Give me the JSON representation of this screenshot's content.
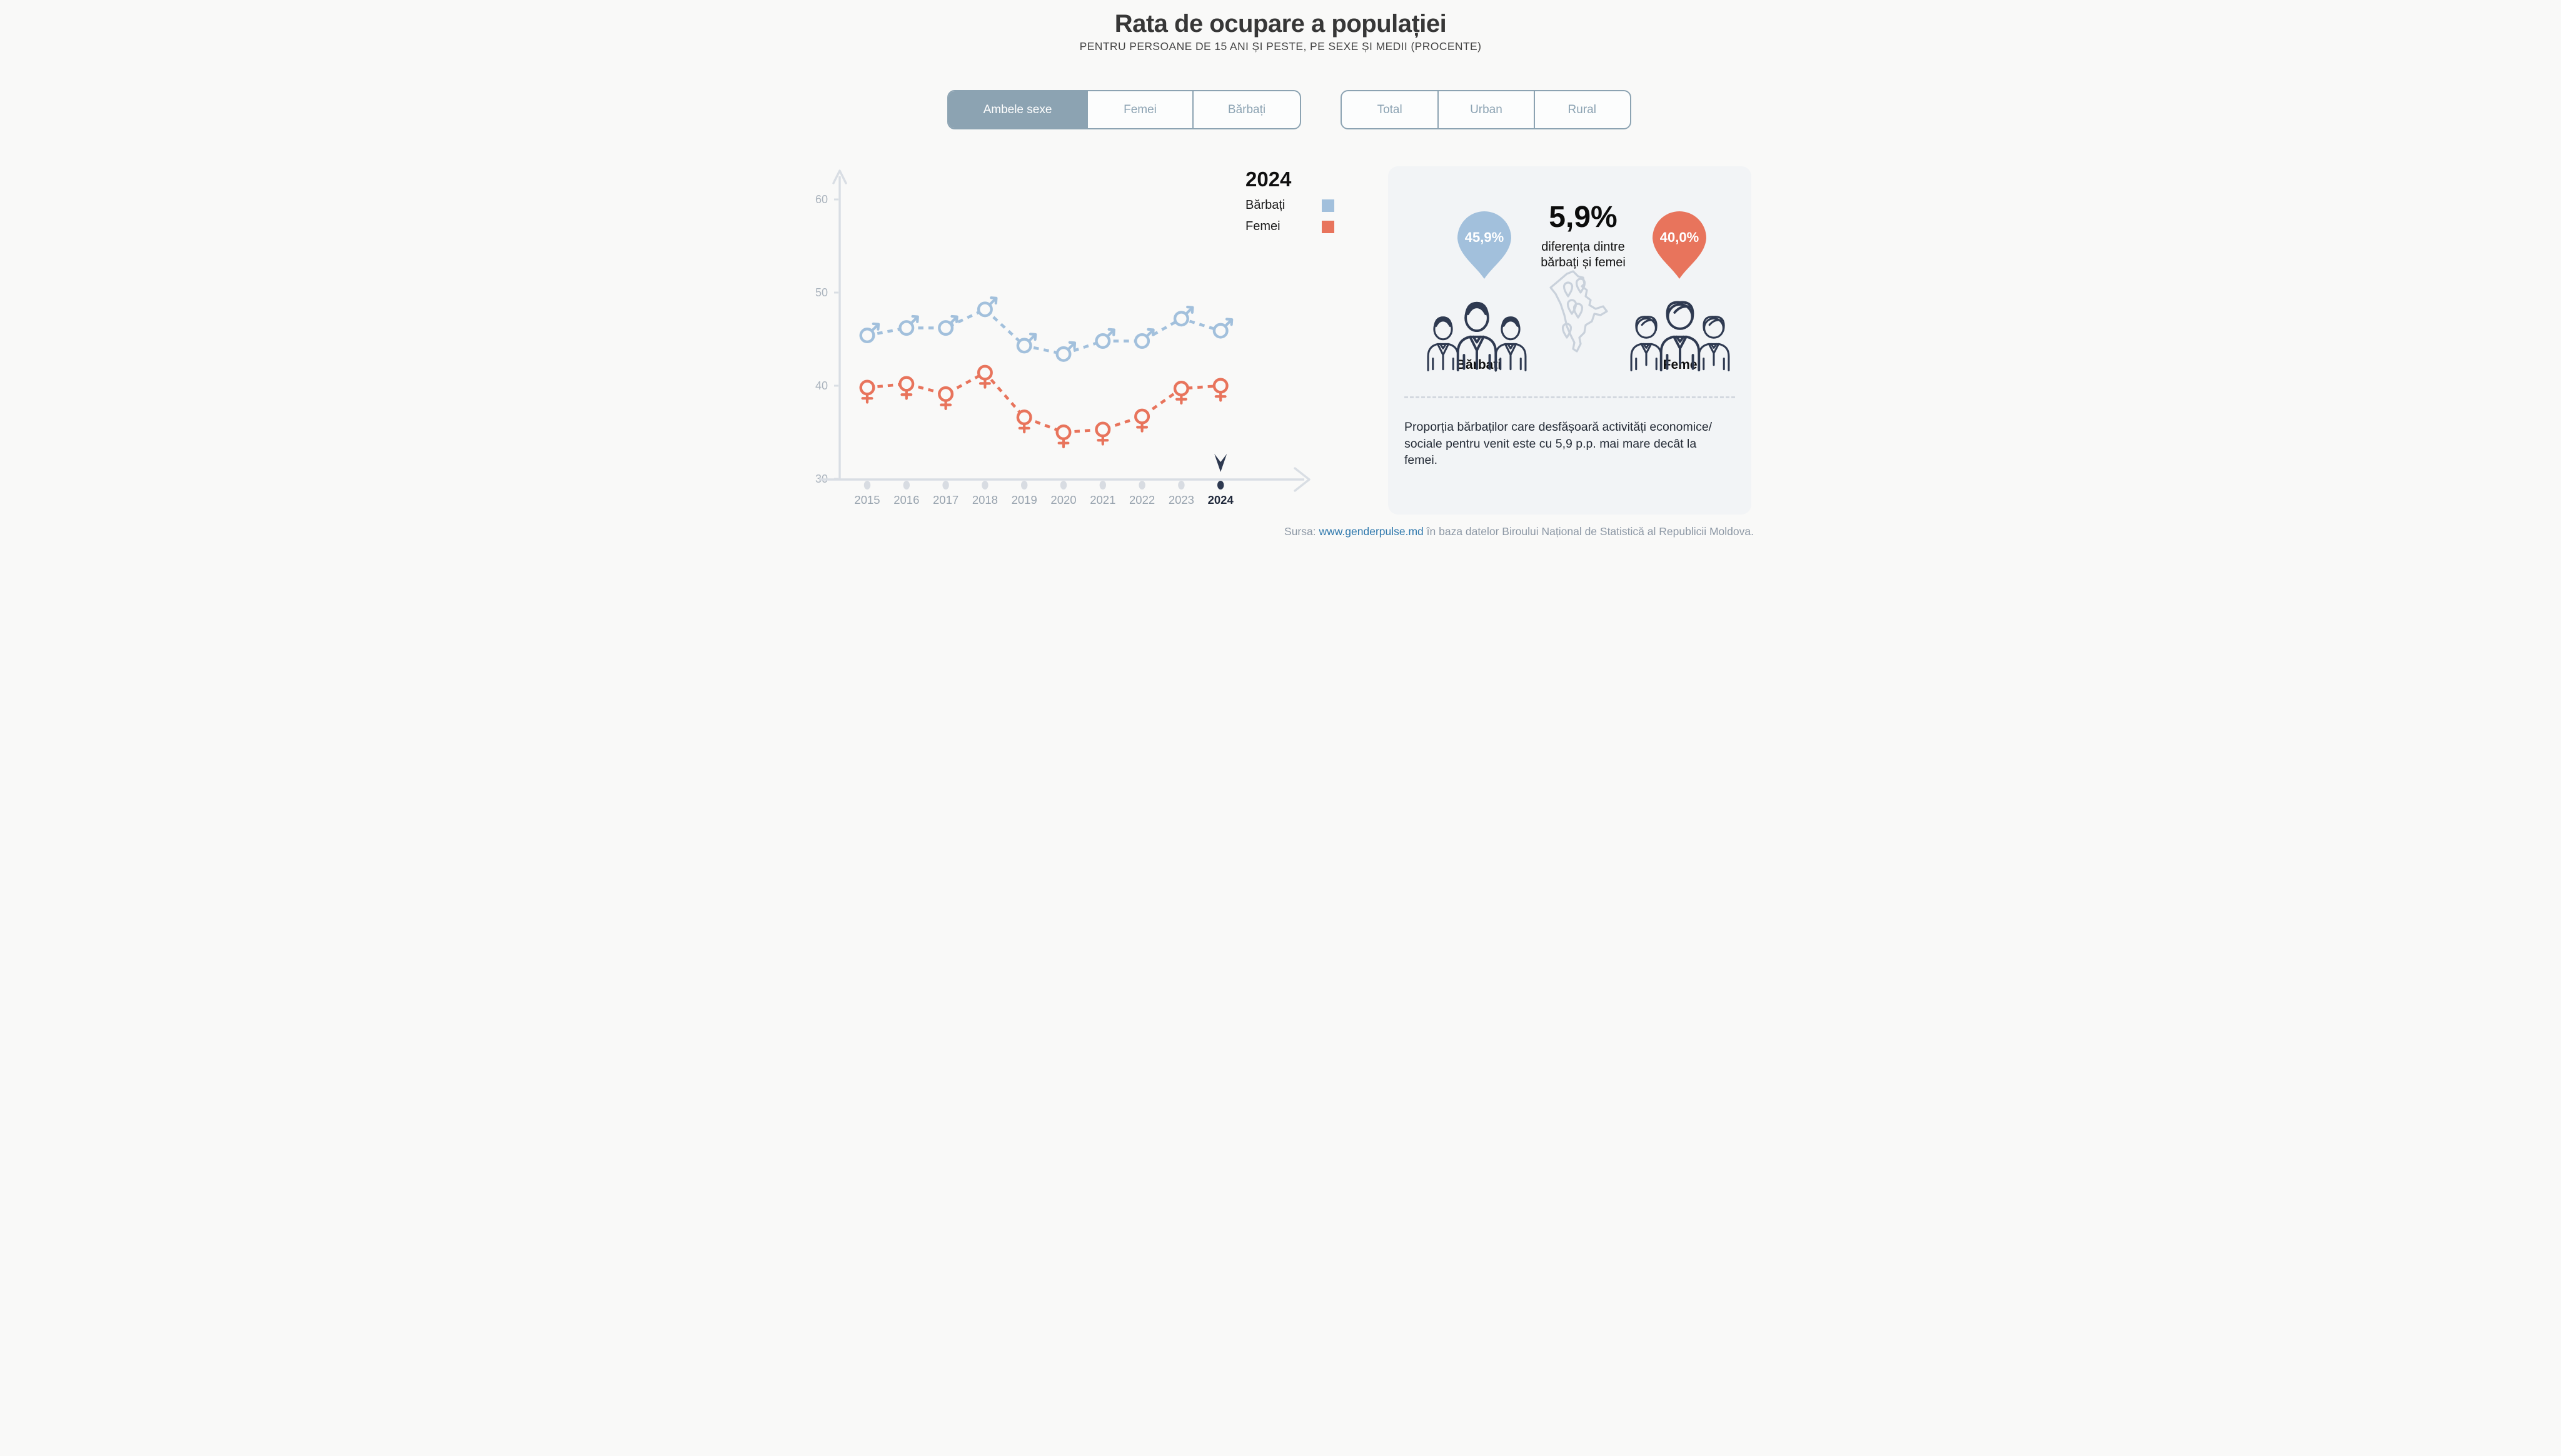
{
  "header": {
    "title": "Rata de ocupare a populației",
    "subtitle": "PENTRU PERSOANE DE 15 ANI ȘI PESTE, PE SEXE ȘI MEDII (PROCENTE)"
  },
  "tabs_sex": {
    "items": [
      {
        "label": "Ambele sexe",
        "selected": true
      },
      {
        "label": "Femei",
        "selected": false
      },
      {
        "label": "Bărbați",
        "selected": false
      }
    ]
  },
  "tabs_area": {
    "items": [
      {
        "label": "Total",
        "selected": false
      },
      {
        "label": "Urban",
        "selected": false
      },
      {
        "label": "Rural",
        "selected": false
      }
    ]
  },
  "legend": {
    "year": "2024",
    "items": [
      {
        "label": "Bărbați",
        "color": "#a2c0dc"
      },
      {
        "label": "Femei",
        "color": "#e8745c"
      }
    ]
  },
  "chart_data": {
    "type": "line",
    "x": [
      "2015",
      "2016",
      "2017",
      "2018",
      "2019",
      "2020",
      "2021",
      "2022",
      "2023",
      "2024"
    ],
    "series": [
      {
        "name": "Bărbați",
        "color": "#a2c0dc",
        "marker": "male",
        "values": [
          45.4,
          46.2,
          46.2,
          48.2,
          44.3,
          43.4,
          44.8,
          44.8,
          47.2,
          45.9
        ]
      },
      {
        "name": "Femei",
        "color": "#e8745c",
        "marker": "female",
        "values": [
          39.8,
          40.2,
          39.1,
          41.4,
          36.6,
          35.0,
          35.3,
          36.7,
          39.7,
          40.0
        ]
      }
    ],
    "ylim": [
      30,
      60
    ],
    "yticks": [
      30,
      40,
      50,
      60
    ],
    "xlabel": "",
    "ylabel": "",
    "grid": false,
    "line_style": "dashed",
    "highlight_x": "2024",
    "style": {
      "axis": "#d9dee4",
      "tick_label": "#aab3bd",
      "year_label": "#98a3ae",
      "highlight": "#2e3950",
      "dot": "#d8dce2",
      "background": "#f9f9f8"
    }
  },
  "panel": {
    "pin_left": {
      "value": "45,9%",
      "color": "#a2c0dc"
    },
    "pin_right": {
      "value": "40,0%",
      "color": "#e8745c"
    },
    "diff": {
      "value": "5,9%",
      "caption_line1": "diferența dintre",
      "caption_line2": "bărbați și femei"
    },
    "group_left_label": "Bărbați",
    "group_right_label": "Femei",
    "note": "Proporția bărbaților care desfășoară activități economice/ sociale pentru venit este cu 5,9 p.p. mai mare decât la femei."
  },
  "source": {
    "prefix": "Sursa: ",
    "link": "www.genderpulse.md",
    "suffix": " în baza datelor Biroului Național de Statistică al Republicii Moldova."
  },
  "theme": {
    "accent_blue": "#a2c0dc",
    "accent_orange": "#e8745c",
    "tab_active_bg": "#8ca3b2",
    "tab_text": "#8ba2b2",
    "highlight_navy": "#2e3950",
    "icon_navy": "#2f3a51",
    "map_gray": "#c9d1db",
    "link_blue": "#3079ad",
    "page_bg": "#f9f9f8",
    "panel_bg": "#f2f4f6"
  }
}
